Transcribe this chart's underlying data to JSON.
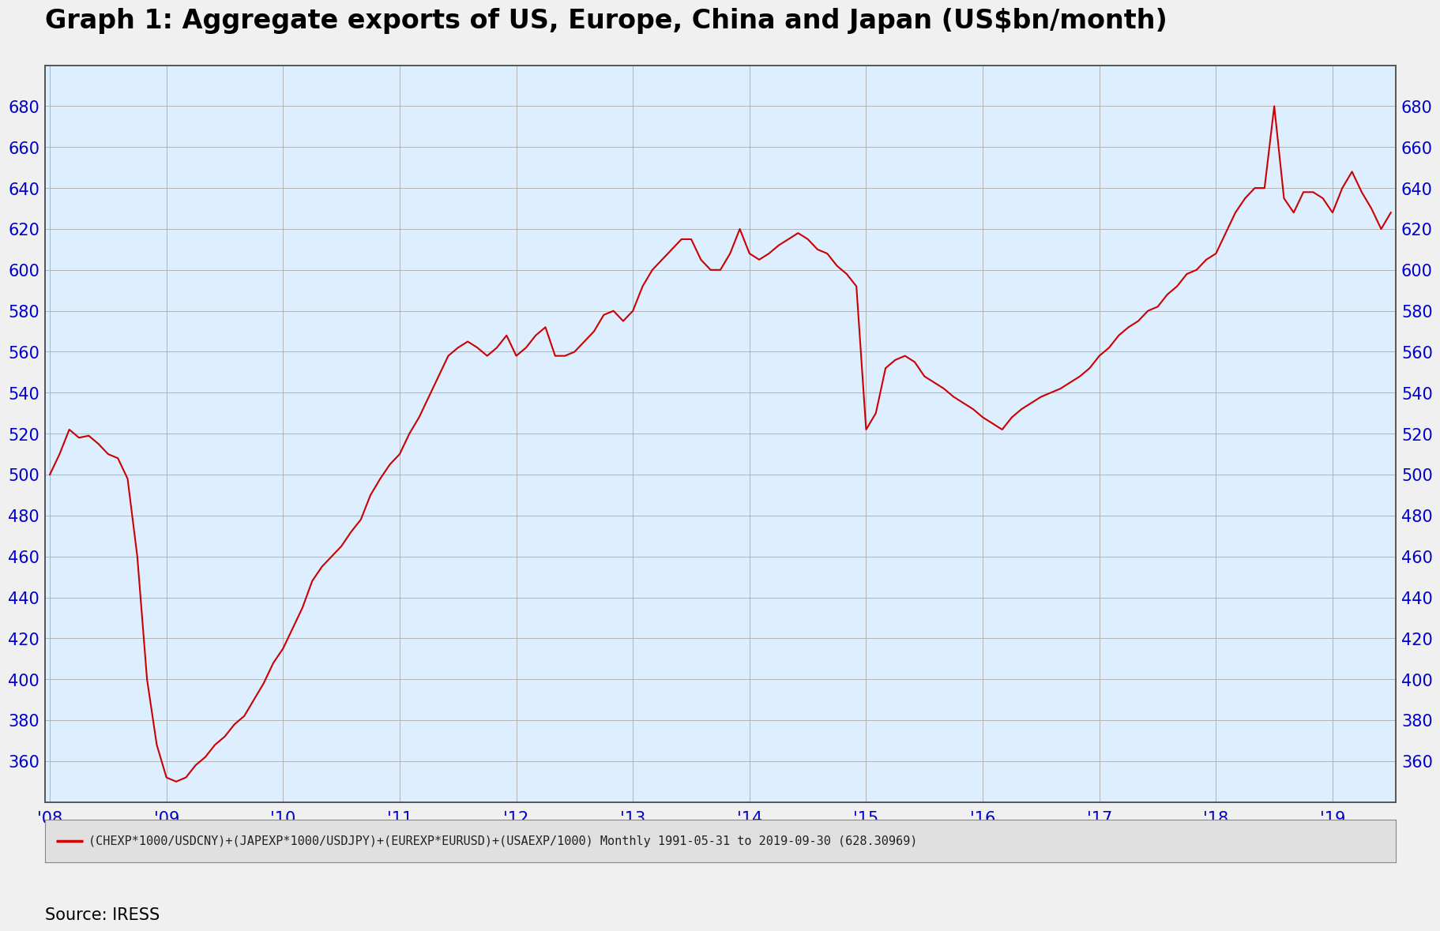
{
  "title": "Graph 1: Aggregate exports of US, Europe, China and Japan (US$bn/month)",
  "source_text": "Source: IRESS",
  "legend_text": "(CHEXP*1000/USDCNY)+(JAPEXP*1000/USDJPY)+(EUREXP*EURUSD)+(USAEXP/1000) Monthly 1991-05-31 to 2019-09-30 (628.30969)",
  "line_color": "#cc0000",
  "background_color": "#f0f0f0",
  "plot_bg_color": "#ddeeff",
  "grid_color": "#aaaaaa",
  "axis_label_color": "#0000cc",
  "title_color": "#000000",
  "legend_bg_color": "#e0e0e0",
  "ylim": [
    340,
    700
  ],
  "yticks": [
    360,
    380,
    400,
    420,
    440,
    460,
    480,
    500,
    520,
    540,
    560,
    580,
    600,
    620,
    640,
    660,
    680
  ],
  "values": [
    500,
    510,
    522,
    518,
    519,
    515,
    510,
    508,
    498,
    460,
    400,
    368,
    352,
    350,
    352,
    358,
    362,
    368,
    372,
    378,
    382,
    390,
    398,
    408,
    415,
    425,
    435,
    448,
    455,
    460,
    465,
    472,
    478,
    490,
    498,
    505,
    510,
    520,
    528,
    538,
    548,
    558,
    562,
    565,
    562,
    558,
    562,
    568,
    558,
    562,
    568,
    572,
    558,
    558,
    560,
    565,
    570,
    578,
    580,
    575,
    580,
    592,
    600,
    605,
    610,
    615,
    615,
    605,
    600,
    600,
    608,
    620,
    608,
    605,
    608,
    612,
    615,
    618,
    615,
    610,
    608,
    602,
    598,
    592,
    522,
    530,
    552,
    556,
    558,
    555,
    548,
    545,
    542,
    538,
    535,
    532,
    528,
    525,
    522,
    528,
    532,
    535,
    538,
    540,
    542,
    545,
    548,
    552,
    558,
    562,
    568,
    572,
    575,
    580,
    582,
    588,
    592,
    598,
    600,
    605,
    608,
    618,
    628,
    635,
    640,
    640,
    680,
    635,
    628,
    638,
    638,
    635,
    628,
    640,
    648,
    638,
    630,
    620,
    628
  ],
  "xtick_years": [
    "'08",
    "'09",
    "'10",
    "'11",
    "'12",
    "'13",
    "'14",
    "'15",
    "'16",
    "'17",
    "'18",
    "'19"
  ],
  "xtick_positions": [
    0,
    12,
    24,
    36,
    48,
    60,
    72,
    84,
    96,
    108,
    120,
    132
  ],
  "title_fontsize": 24,
  "tick_fontsize": 15,
  "legend_fontsize": 11,
  "source_fontsize": 15
}
